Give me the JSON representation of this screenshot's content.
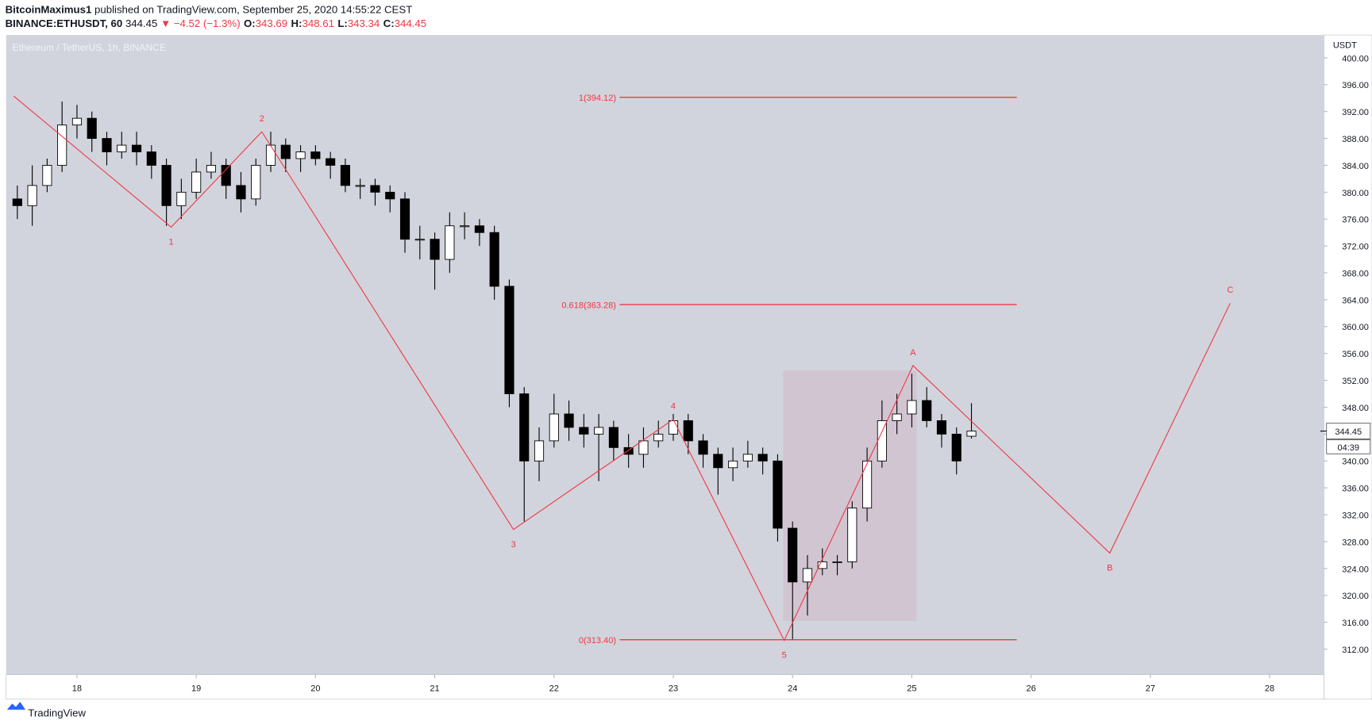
{
  "header": {
    "author": "BitcoinMaximus1",
    "published": "published on TradingView.com, September 25, 2020 14:55:22 CEST",
    "symbol": "BINANCE:ETHUSDT, 60",
    "price": "344.45",
    "change": "▼ −4.52 (−1.3%)",
    "ohlc": [
      {
        "label": "O:",
        "value": "343.69"
      },
      {
        "label": "H:",
        "value": "348.61"
      },
      {
        "label": "L:",
        "value": "343.34"
      },
      {
        "label": "C:",
        "value": "344.45"
      }
    ]
  },
  "footer": {
    "brand": "TradingView"
  },
  "chart_data": {
    "type": "candlestick",
    "title": "Ethereum / TetherUS, 1h, BINANCE",
    "y_axis_label": "USDT",
    "up_color": "#ffffff",
    "down_color": "#000000",
    "background": "#d1d4dc",
    "line_color": "#f23645",
    "x": [
      17.5,
      17.625,
      17.75,
      17.875,
      18,
      18.125,
      18.25,
      18.375,
      18.5,
      18.625,
      18.75,
      18.875,
      19,
      19.125,
      19.25,
      19.375,
      19.5,
      19.625,
      19.75,
      19.875,
      20,
      20.125,
      20.25,
      20.375,
      20.5,
      20.625,
      20.75,
      20.875,
      21,
      21.125,
      21.25,
      21.375,
      21.5,
      21.625,
      21.75,
      21.875,
      22,
      22.125,
      22.25,
      22.375,
      22.5,
      22.625,
      22.75,
      22.875,
      23,
      23.125,
      23.25,
      23.375,
      23.5,
      23.625,
      23.75,
      23.875,
      24,
      24.125,
      24.25,
      24.375,
      24.5,
      24.625,
      24.75,
      24.875,
      25,
      25.125,
      25.25,
      25.375,
      25.5
    ],
    "open": [
      379,
      378,
      381,
      384,
      390,
      391,
      388,
      386,
      387,
      386,
      384,
      378,
      380,
      383,
      384,
      381,
      379,
      384,
      387,
      385,
      386,
      385,
      384,
      381,
      381,
      380,
      379,
      373,
      373,
      370,
      375,
      375,
      374,
      366,
      350,
      340,
      343,
      347,
      345,
      344,
      345,
      342,
      341,
      343,
      344,
      346,
      343,
      341,
      339,
      340,
      341,
      340,
      330,
      322,
      324,
      325,
      325,
      333,
      340,
      346,
      347,
      349,
      346,
      344,
      343.69
    ],
    "high": [
      381,
      384,
      385,
      393.5,
      393,
      392,
      389,
      389,
      389,
      387,
      385,
      382,
      385,
      386,
      385,
      383,
      385,
      389,
      388,
      387,
      387,
      386,
      385,
      382,
      382,
      381,
      380,
      375,
      374,
      377,
      377,
      376,
      375,
      367,
      351,
      345,
      350,
      349,
      347,
      347,
      346,
      344,
      345,
      346,
      347,
      347,
      344,
      342,
      342,
      343,
      342,
      341,
      331,
      326,
      327,
      326,
      334,
      342,
      349,
      350,
      353,
      351,
      347,
      345,
      348.61
    ],
    "low": [
      376,
      375,
      380,
      383,
      388,
      386,
      384,
      385,
      384,
      382,
      375,
      376,
      379,
      382,
      379,
      377,
      378,
      383,
      383,
      383,
      384,
      382,
      380,
      379,
      378,
      377,
      371,
      370,
      365.5,
      368,
      373,
      372,
      364,
      348,
      331,
      337,
      342,
      343,
      342,
      337,
      340,
      339,
      339,
      342,
      343,
      341,
      339,
      335,
      337,
      339,
      338,
      328,
      313.4,
      317,
      323,
      323,
      324,
      331,
      339,
      344,
      345,
      345,
      342,
      338,
      343.34
    ],
    "close": [
      378,
      381,
      384,
      390,
      391,
      388,
      386,
      387,
      386,
      384,
      378,
      380,
      383,
      384,
      381,
      379,
      384,
      387,
      385,
      386,
      385,
      384,
      381,
      381,
      380,
      379,
      373,
      373,
      370,
      375,
      375,
      374,
      366,
      350,
      340,
      343,
      347,
      345,
      344,
      345,
      342,
      341,
      343,
      344,
      346,
      343,
      341,
      339,
      340,
      341,
      340,
      330,
      322,
      324,
      325,
      325,
      333,
      340,
      346,
      347,
      349,
      346,
      344,
      340,
      344.45
    ],
    "xlim": [
      17.406,
      28.455
    ],
    "xticks": [
      18,
      19,
      20,
      21,
      22,
      23,
      24,
      25,
      26,
      27,
      28
    ],
    "ylim": [
      308.2,
      403.4
    ],
    "yticks": [
      {
        "value": 312,
        "label": "312.00"
      },
      {
        "value": 316,
        "label": "316.00"
      },
      {
        "value": 320,
        "label": "320.00"
      },
      {
        "value": 324,
        "label": "324.00"
      },
      {
        "value": 328,
        "label": "328.00"
      },
      {
        "value": 332,
        "label": "332.00"
      },
      {
        "value": 336,
        "label": "336.00"
      },
      {
        "value": 340,
        "label": "340.00"
      },
      {
        "value": 344,
        "label": "344.00"
      },
      {
        "value": 348,
        "label": "348.00"
      },
      {
        "value": 352,
        "label": "352.00"
      },
      {
        "value": 356,
        "label": "356.00"
      },
      {
        "value": 360,
        "label": "360.00"
      },
      {
        "value": 364,
        "label": "364.00"
      },
      {
        "value": 368,
        "label": "368.00"
      },
      {
        "value": 372,
        "label": "372.00"
      },
      {
        "value": 376,
        "label": "376.00"
      },
      {
        "value": 380,
        "label": "380.00"
      },
      {
        "value": 384,
        "label": "384.00"
      },
      {
        "value": 388,
        "label": "388.00"
      },
      {
        "value": 392,
        "label": "392.00"
      },
      {
        "value": 396,
        "label": "396.00"
      },
      {
        "value": 400,
        "label": "400.00"
      }
    ],
    "grid": false,
    "last_price": {
      "value": 344.45,
      "label": "344.45",
      "countdown": "04:39"
    },
    "waves": {
      "labels": [
        "1",
        "2",
        "3",
        "4",
        "5",
        "A",
        "B",
        "C"
      ],
      "x": [
        17.47,
        18.79,
        19.55,
        21.66,
        23.0,
        23.93,
        25.01,
        26.66,
        27.67
      ],
      "y": [
        394.3,
        374.8,
        389,
        329.8,
        346.2,
        313.3,
        354.2,
        326.3,
        363.5
      ]
    },
    "fib": {
      "x": [
        22.55,
        25.88
      ],
      "levels": [
        {
          "value": 394.12,
          "label": "1(394.12)"
        },
        {
          "value": 363.28,
          "label": "0.618(363.28)"
        },
        {
          "value": 313.4,
          "label": "0(313.40)"
        }
      ]
    },
    "box": {
      "x": [
        23.92,
        25.04
      ],
      "y": [
        316.2,
        353.5
      ]
    }
  }
}
